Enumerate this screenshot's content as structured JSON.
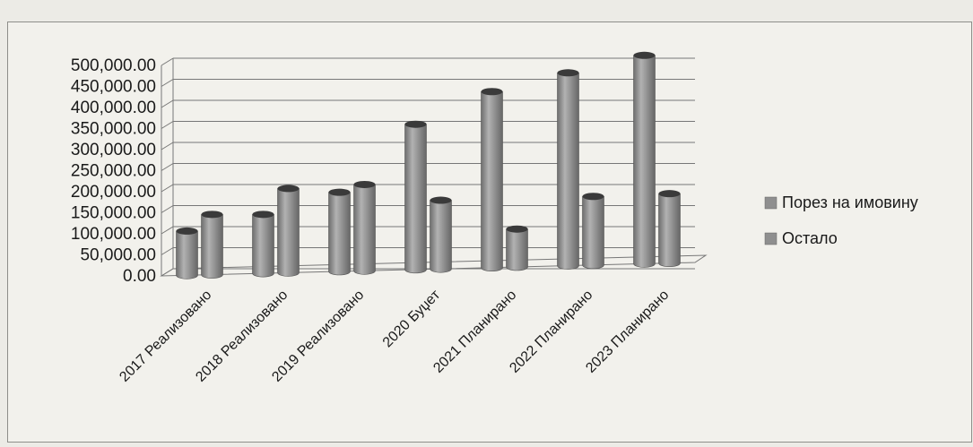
{
  "chart_data": {
    "type": "bar",
    "categories": [
      "2017 Реализовано",
      "2018 Реализовано",
      "2019 Реализовано",
      "2020 Буџет",
      "2021 Планирано",
      "2022 Планирано",
      "2023 Планирано"
    ],
    "series": [
      {
        "name": "Порез на имовину",
        "values": [
          105000,
          140000,
          188000,
          345000,
          418000,
          458000,
          495000
        ]
      },
      {
        "name": "Остало",
        "values": [
          143000,
          200000,
          205000,
          163000,
          90000,
          163000,
          165000
        ]
      }
    ],
    "y_ticks": [
      "0.00",
      "50,000.00",
      "100,000.00",
      "150,000.00",
      "200,000.00",
      "250,000.00",
      "300,000.00",
      "350,000.00",
      "400,000.00",
      "450,000.00",
      "500,000.00"
    ],
    "ylim": [
      0,
      500000
    ],
    "legend_position": "right",
    "grid": true,
    "colors": {
      "bar": "#8f8f8f",
      "bar_light": "#b4b4b4",
      "bar_dark": "#5a5a5a",
      "top": "#3a3a3a",
      "grid": "#777777"
    }
  }
}
